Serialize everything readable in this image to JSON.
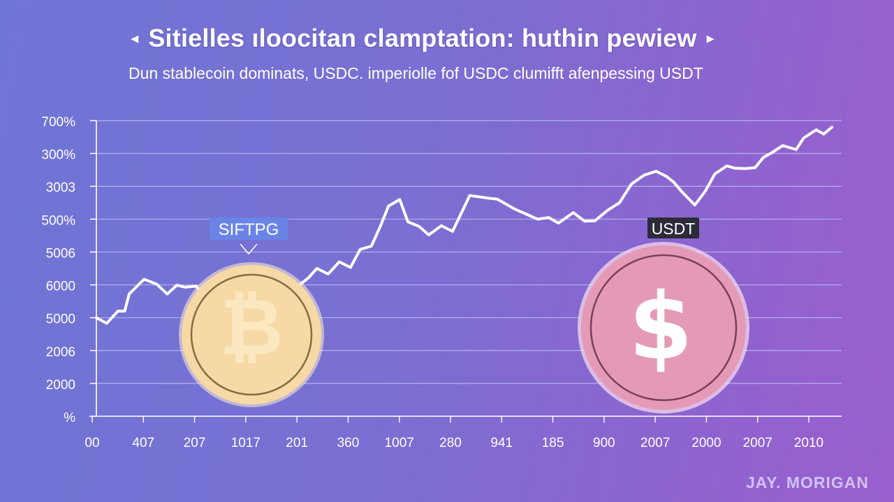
{
  "header": {
    "title": "Sitielles ıloocitan clamptation: huthin pewiew",
    "subtitle": "Dun stablecoin dominats, USDC. imperiolle fof USDC clumifft afenpessing USDT",
    "arrow_left": "◂",
    "arrow_right": "▸"
  },
  "watermark": "JAY. MORIGAN",
  "colors": {
    "line": "#ffffff",
    "gridline": "#b7b3ee",
    "axis": "#ffffff",
    "coin_gold": "#f6d9a4",
    "coin_pink": "#e49ab6",
    "badge_blue": "#6a84e6",
    "badge_dark": "#2b2b3a"
  },
  "icons": {
    "left_coin": "bitcoin-coin-icon",
    "right_coin": "dollar-coin-icon"
  },
  "annotations": [
    {
      "label": "SIFTPG",
      "style": "blue-badge",
      "symbol": "₿"
    },
    {
      "label": "USDT",
      "style": "dark-badge",
      "symbol": "$"
    }
  ],
  "chart_data": {
    "type": "line",
    "title": "Sitielles ıloocitan clamptation: huthin pewiew",
    "subtitle": "Dun stablecoin dominats, USDC. imperiolle fof USDC clumifft afenpessing USDT",
    "y_tick_labels": [
      "700%",
      "300%",
      "3003",
      "500%",
      "5006",
      "6000",
      "5000",
      "2006",
      "2000",
      "%"
    ],
    "x_tick_labels": [
      "00",
      "407",
      "207",
      "1017",
      "201",
      "360",
      "1007",
      "280",
      "941",
      "185",
      "900",
      "2007",
      "2000",
      "2007",
      "2010"
    ],
    "ylim": [
      0,
      9
    ],
    "xlim": [
      0,
      100
    ],
    "grid": true,
    "series": [
      {
        "x": [
          0,
          1.4,
          2.9,
          3.8,
          4.4,
          6.4,
          8.1,
          9.5,
          10.8,
          11.9,
          13.4,
          14.4,
          15.8,
          18.8,
          19.7,
          22.1,
          28.4,
          29.6,
          31.1,
          32.6,
          34.1,
          35.4,
          36.9,
          38.1,
          39.2,
          40.7,
          41.8,
          43.3,
          44.6,
          46.3,
          47.8,
          50.1,
          52.6,
          53.8,
          56.2,
          59.2,
          60.7,
          62.0,
          64.0,
          65.5,
          66.9,
          68.6,
          70.2,
          71.8,
          73.5,
          75.1,
          76.5,
          77.5,
          78.5,
          80.3,
          81.7,
          83.0,
          84.6,
          85.7,
          87.1,
          88.4,
          89.5,
          90.6,
          92.1,
          93.9,
          94.9,
          96.6,
          97.6,
          98.7
        ],
        "y": [
          3.0,
          2.83,
          3.2,
          3.2,
          3.72,
          4.17,
          4.02,
          3.72,
          3.99,
          3.93,
          3.96,
          3.66,
          3.93,
          2.5,
          2.48,
          3.1,
          4.2,
          4.5,
          4.33,
          4.7,
          4.53,
          5.08,
          5.18,
          5.78,
          6.4,
          6.6,
          5.92,
          5.78,
          5.52,
          5.8,
          5.63,
          6.72,
          6.64,
          6.61,
          6.3,
          6.0,
          6.05,
          5.88,
          6.2,
          5.94,
          5.95,
          6.27,
          6.5,
          7.07,
          7.34,
          7.46,
          7.3,
          7.12,
          6.85,
          6.43,
          6.85,
          7.38,
          7.62,
          7.55,
          7.54,
          7.57,
          7.88,
          8.02,
          8.24,
          8.12,
          8.47,
          8.72,
          8.59,
          8.8
        ]
      }
    ]
  }
}
